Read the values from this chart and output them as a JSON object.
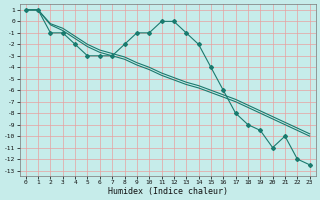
{
  "xlabel": "Humidex (Indice chaleur)",
  "bg_color": "#c6ecea",
  "grid_color_major": "#e8a0a0",
  "grid_color_minor": "#e8c0c0",
  "line_color": "#1a7a6e",
  "xlim": [
    -0.5,
    23.5
  ],
  "ylim": [
    -13.5,
    1.5
  ],
  "yticks": [
    1,
    0,
    -1,
    -2,
    -3,
    -4,
    -5,
    -6,
    -7,
    -8,
    -9,
    -10,
    -11,
    -12,
    -13
  ],
  "xticks": [
    0,
    1,
    2,
    3,
    4,
    5,
    6,
    7,
    8,
    9,
    10,
    11,
    12,
    13,
    14,
    15,
    16,
    17,
    18,
    19,
    20,
    21,
    22,
    23
  ],
  "line1_x": [
    0,
    1,
    2,
    3,
    4,
    5,
    6,
    7,
    8,
    9,
    10,
    11,
    12,
    13,
    14,
    15,
    16,
    17,
    18,
    19,
    20,
    21,
    22,
    23
  ],
  "line1_y": [
    1,
    1,
    -1,
    -1,
    -2,
    -3,
    -3,
    -3,
    -2,
    -1,
    -1,
    0,
    0,
    -1,
    -2,
    -4,
    -6,
    -8,
    -9,
    -9.5,
    -11,
    -10,
    -12,
    -12.5
  ],
  "line2_x": [
    0,
    1,
    2,
    3,
    4,
    5,
    6,
    7,
    8,
    9,
    10,
    11,
    12,
    13,
    14,
    15,
    16,
    17,
    18,
    19,
    20,
    21,
    22,
    23
  ],
  "line2_y": [
    1,
    1,
    -0.3,
    -0.8,
    -1.5,
    -2.2,
    -2.7,
    -3.0,
    -3.3,
    -3.8,
    -4.2,
    -4.7,
    -5.1,
    -5.5,
    -5.8,
    -6.2,
    -6.6,
    -7.0,
    -7.5,
    -8.0,
    -8.5,
    -9.0,
    -9.5,
    -10.0
  ],
  "line3_x": [
    0,
    1,
    2,
    3,
    4,
    5,
    6,
    7,
    8,
    9,
    10,
    11,
    12,
    13,
    14,
    15,
    16,
    17,
    18,
    19,
    20,
    21,
    22,
    23
  ],
  "line3_y": [
    1,
    1,
    -0.2,
    -0.6,
    -1.3,
    -2.0,
    -2.5,
    -2.8,
    -3.1,
    -3.6,
    -4.0,
    -4.5,
    -4.9,
    -5.3,
    -5.6,
    -6.0,
    -6.4,
    -6.8,
    -7.3,
    -7.8,
    -8.3,
    -8.8,
    -9.3,
    -9.8
  ]
}
